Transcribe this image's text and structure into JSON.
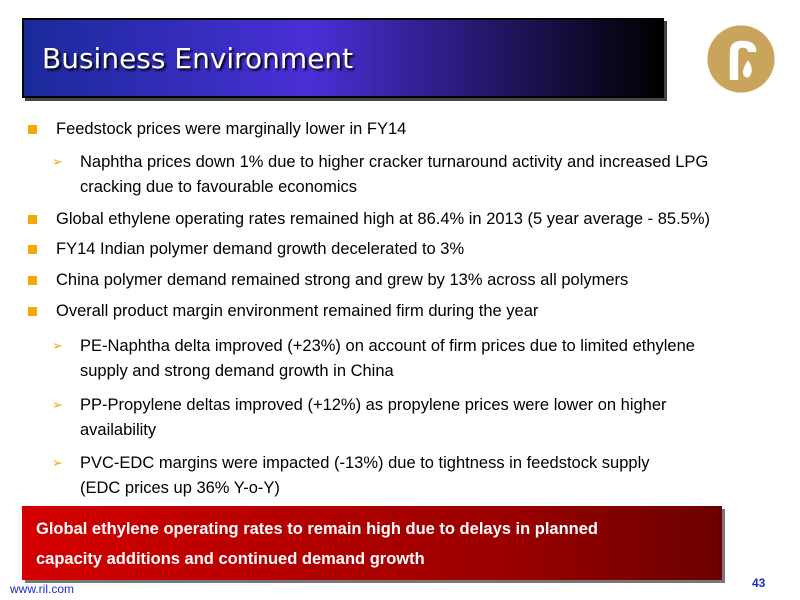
{
  "header": {
    "title": "Business Environment"
  },
  "bullets": [
    {
      "level": 1,
      "lines": [
        "Feedstock prices were marginally lower in FY14"
      ]
    },
    {
      "level": 2,
      "lines": [
        "Naphtha prices down 1% due to higher cracker turnaround activity and increased LPG",
        "cracking due to favourable economics"
      ]
    },
    {
      "level": 1,
      "lines": [
        "Global ethylene operating rates remained high at 86.4% in 2013  (5 year average - 85.5%)"
      ]
    },
    {
      "level": 1,
      "lines": [
        "FY14 Indian polymer demand growth decelerated to 3%"
      ]
    },
    {
      "level": 1,
      "lines": [
        "China polymer demand remained strong and grew by 13% across all polymers"
      ]
    },
    {
      "level": 1,
      "lines": [
        "Overall product margin environment remained firm during the year"
      ]
    },
    {
      "level": 2,
      "lines": [
        "PE-Naphtha delta improved (+23%) on account of firm prices due to limited ethylene",
        "supply and strong demand growth in China"
      ]
    },
    {
      "level": 2,
      "lines": [
        "PP-Propylene deltas improved (+12%) as propylene prices were lower on higher",
        "availability"
      ]
    },
    {
      "level": 2,
      "lines": [
        "PVC-EDC margins were impacted (-13%) due to tightness in feedstock supply",
        "(EDC prices up 36% Y-o-Y)"
      ]
    }
  ],
  "banner": {
    "lines": [
      "Global ethylene operating rates to remain high due to delays in planned",
      "capacity additions and continued demand growth"
    ]
  },
  "footer": {
    "url": "www.ril.com",
    "page_number": "43"
  },
  "colors": {
    "accent": "#f2a900",
    "banner": "#c00000",
    "logo": "#c9a45c",
    "link": "#1a2ad0"
  }
}
